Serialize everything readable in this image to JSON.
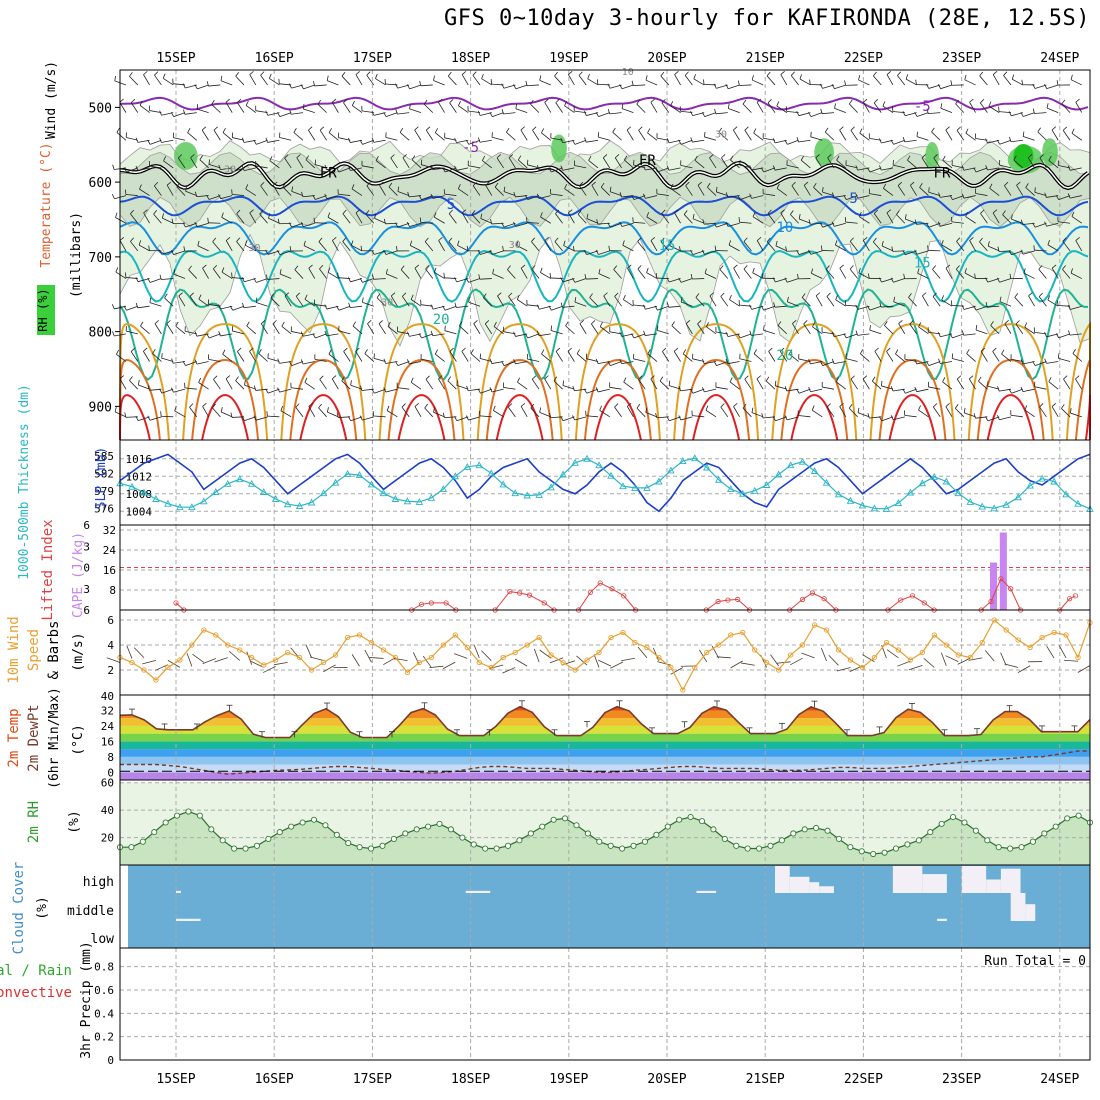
{
  "title": "GFS 0~10day 3-hourly for KAFIRONDA (28E, 12.5S)",
  "colors": {
    "purple": "#8a2ab0",
    "black": "#000000",
    "blue": "#1a4fd6",
    "midblue": "#1a8fe0",
    "cyan": "#17b6c0",
    "teal": "#1fb394",
    "gold": "#e0a020",
    "orange": "#e07020",
    "red": "#e02020",
    "slp": "#1b3fc8",
    "thick": "#2bb6c6",
    "cape": "#c884f0",
    "li": "#e04040",
    "wind10": "#e8a030",
    "rh2m": "#2e9e2e",
    "cloud": "#6aaed6",
    "panel_bg_green": "#e6f3e0"
  },
  "chart_data": [
    {
      "id": "upper-air",
      "type": "line",
      "ylabel_parts": [
        "Wind (m/s)",
        "Temperature (°C)",
        "RH (%)",
        "(millibars)"
      ],
      "y_ticks": [
        500,
        600,
        700,
        800,
        900
      ],
      "ylim": [
        450,
        945
      ],
      "x_ticks_top": [
        "15SEP",
        "16SEP",
        "17SEP",
        "18SEP",
        "19SEP",
        "20SEP",
        "21SEP",
        "22SEP",
        "23SEP",
        "24SEP"
      ],
      "contour_labels": [
        {
          "text": "-5",
          "day": 3.0,
          "p": 560,
          "color": "purple"
        },
        {
          "text": "-5",
          "day": 7.6,
          "p": 505,
          "color": "purple"
        },
        {
          "text": "10",
          "day": 4.6,
          "p": 457,
          "color": "gray"
        },
        {
          "text": "30",
          "day": 0.55,
          "p": 587,
          "color": "gray"
        },
        {
          "text": "30",
          "day": 5.55,
          "p": 540,
          "color": "gray"
        },
        {
          "text": "30",
          "day": 0.8,
          "p": 692,
          "color": "gray"
        },
        {
          "text": "30",
          "day": 2.15,
          "p": 765,
          "color": "gray"
        },
        {
          "text": "30",
          "day": 3.45,
          "p": 688,
          "color": "gray"
        },
        {
          "text": "FR",
          "day": 1.55,
          "p": 594,
          "color": "black"
        },
        {
          "text": "FR",
          "day": 4.8,
          "p": 577,
          "color": "black"
        },
        {
          "text": "FR",
          "day": 7.8,
          "p": 594,
          "color": "black"
        },
        {
          "text": "5",
          "day": 2.8,
          "p": 636,
          "color": "blue"
        },
        {
          "text": "5",
          "day": 6.9,
          "p": 628,
          "color": "blue"
        },
        {
          "text": "10",
          "day": 6.2,
          "p": 667,
          "color": "midblue"
        },
        {
          "text": "15",
          "day": 5.0,
          "p": 691,
          "color": "cyan"
        },
        {
          "text": "15",
          "day": 7.6,
          "p": 714,
          "color": "cyan"
        },
        {
          "text": "20",
          "day": 2.7,
          "p": 790,
          "color": "teal"
        },
        {
          "text": "20",
          "day": 6.2,
          "p": 838,
          "color": "teal"
        }
      ],
      "contours": [
        {
          "name": "-5C",
          "color": "purple",
          "base": 495,
          "amp": 6
        },
        {
          "name": "0C",
          "color": "black",
          "base": 590,
          "amp": 10
        },
        {
          "name": "5C",
          "color": "blue",
          "base": 630,
          "amp": 10
        },
        {
          "name": "10C",
          "color": "midblue",
          "base": 670,
          "amp": 18
        },
        {
          "name": "15C",
          "color": "cyan",
          "base": 715,
          "amp": 30
        },
        {
          "name": "20C",
          "color": "teal",
          "base": 790,
          "amp": 50
        }
      ]
    },
    {
      "id": "slp-thickness",
      "type": "line",
      "left_label": "1000-500mb Thickness (dm)",
      "right_label": "SLP (mb)",
      "left_ticks": [
        576,
        579,
        582,
        585
      ],
      "right_ticks": [
        1004,
        1008,
        1012,
        1016
      ],
      "slp": [
        1011,
        1013,
        1015,
        1016,
        1017,
        1015,
        1013,
        1009,
        1011,
        1013,
        1015,
        1016,
        1014,
        1011,
        1008,
        1010,
        1012,
        1014,
        1016,
        1017,
        1015,
        1012,
        1009,
        1011,
        1013,
        1015,
        1016,
        1014,
        1011,
        1007,
        1009,
        1012,
        1014,
        1015,
        1016,
        1013,
        1011,
        1009,
        1008,
        1010,
        1013,
        1015,
        1013,
        1010,
        1006,
        1004,
        1007,
        1011,
        1013,
        1015,
        1014,
        1011,
        1008,
        1006,
        1005,
        1009,
        1011,
        1013,
        1015,
        1016,
        1014,
        1011,
        1008,
        1010,
        1012,
        1014,
        1016,
        1014,
        1011,
        1008,
        1009,
        1011,
        1013,
        1015,
        1016,
        1013,
        1011,
        1010,
        1012,
        1014,
        1016,
        1017
      ],
      "thickness": [
        580.3,
        579.7,
        578.7,
        577.6,
        576.8,
        576.2,
        576.2,
        577.2,
        578.8,
        580.2,
        581.0,
        580.2,
        578.8,
        577.6,
        576.7,
        576.4,
        577.0,
        578.6,
        580.4,
        581.9,
        581.7,
        580.1,
        578.6,
        577.6,
        577.2,
        577.1,
        577.8,
        579.3,
        581.5,
        583.1,
        583.4,
        582.0,
        580.1,
        578.6,
        578.2,
        578.3,
        579.6,
        581.8,
        583.8,
        584.5,
        583.4,
        581.6,
        579.8,
        579.5,
        579.5,
        580.6,
        582.5,
        584.1,
        584.6,
        583.0,
        580.9,
        579.3,
        578.5,
        579.0,
        580.0,
        581.8,
        583.4,
        584.0,
        582.4,
        580.4,
        578.4,
        577.3,
        576.5,
        576.0,
        575.9,
        576.9,
        578.7,
        580.3,
        581.4,
        580.6,
        578.6,
        577.1,
        576.3,
        576.0,
        576.6,
        577.9,
        579.9,
        581.1,
        580.6,
        578.4,
        576.8,
        575.9
      ]
    },
    {
      "id": "li-cape",
      "type": "bar",
      "left_label": "Lifted Index",
      "right_label": "CAPE (J/kg)",
      "li_ticks": [
        -6,
        -3,
        0,
        3,
        6
      ],
      "cape_ticks": [
        8,
        16,
        24,
        32
      ],
      "cape_bars": [
        {
          "day": 8.32,
          "value": 19
        },
        {
          "day": 8.42,
          "value": 31
        }
      ],
      "li_segments": [
        [
          [
            0.0,
            5.0
          ],
          [
            0.08,
            6.0
          ]
        ],
        [
          [
            2.4,
            6.0
          ],
          [
            2.5,
            5.2
          ],
          [
            2.6,
            5.0
          ],
          [
            2.75,
            5.0
          ],
          [
            2.85,
            6.0
          ]
        ],
        [
          [
            3.25,
            6.0
          ],
          [
            3.4,
            3.4
          ],
          [
            3.5,
            3.6
          ],
          [
            3.6,
            3.9
          ],
          [
            3.75,
            5.0
          ],
          [
            3.85,
            6.0
          ]
        ],
        [
          [
            4.1,
            6.0
          ],
          [
            4.22,
            3.5
          ],
          [
            4.32,
            2.2
          ],
          [
            4.44,
            3.0
          ],
          [
            4.56,
            4.0
          ],
          [
            4.68,
            6.0
          ]
        ],
        [
          [
            5.4,
            6.0
          ],
          [
            5.52,
            4.8
          ],
          [
            5.62,
            4.6
          ],
          [
            5.72,
            4.5
          ],
          [
            5.84,
            6.0
          ]
        ],
        [
          [
            6.25,
            6.0
          ],
          [
            6.38,
            4.5
          ],
          [
            6.48,
            3.6
          ],
          [
            6.6,
            4.4
          ],
          [
            6.72,
            6.0
          ]
        ],
        [
          [
            7.25,
            6.0
          ],
          [
            7.38,
            4.6
          ],
          [
            7.5,
            4.0
          ],
          [
            7.62,
            5.0
          ],
          [
            7.72,
            6.0
          ]
        ],
        [
          [
            8.2,
            6.0
          ],
          [
            8.3,
            4.8
          ],
          [
            8.4,
            1.6
          ],
          [
            8.5,
            3.0
          ],
          [
            8.6,
            6.0
          ]
        ],
        [
          [
            9.0,
            6.0
          ],
          [
            9.1,
            4.4
          ],
          [
            9.16,
            4.0
          ]
        ]
      ]
    },
    {
      "id": "wind10m",
      "type": "line",
      "label": "10m Wind Speed & Barbs (m/s)",
      "ylim": [
        0,
        6.5
      ],
      "y_ticks": [
        2,
        4,
        6
      ],
      "values": [
        3.0,
        2.6,
        2.0,
        1.2,
        2.2,
        2.8,
        4.0,
        5.2,
        4.8,
        4.0,
        3.6,
        3.0,
        2.4,
        2.8,
        3.4,
        3.0,
        2.0,
        2.6,
        3.2,
        4.6,
        4.8,
        4.2,
        3.6,
        3.0,
        1.8,
        2.6,
        3.0,
        4.0,
        4.8,
        3.8,
        2.6,
        2.2,
        3.0,
        3.4,
        4.0,
        4.6,
        3.2,
        2.6,
        2.0,
        2.8,
        3.4,
        4.6,
        5.0,
        4.2,
        3.8,
        3.0,
        2.2,
        0.4,
        2.2,
        3.4,
        4.0,
        4.8,
        5.0,
        3.6,
        2.6,
        2.0,
        3.2,
        4.0,
        5.6,
        5.2,
        3.6,
        2.8,
        2.2,
        3.0,
        4.2,
        3.6,
        2.8,
        3.4,
        4.8,
        4.0,
        3.2,
        3.0,
        4.2,
        6.0,
        5.2,
        4.4,
        3.8,
        4.6,
        5.0,
        4.8,
        3.0,
        5.8
      ]
    },
    {
      "id": "temp2m",
      "type": "area",
      "label": "2m Temp 2m DewPt (6hr Min/Max) (°C)",
      "ylim": [
        -4,
        40
      ],
      "y_ticks": [
        0,
        8,
        16,
        24,
        32,
        40
      ],
      "day_max": [
        30,
        32,
        33,
        33,
        34,
        34,
        34,
        33,
        32,
        32
      ],
      "night_min": [
        22,
        18,
        18,
        19,
        19,
        20,
        20,
        19,
        19,
        21
      ],
      "dewpoint": [
        4,
        4,
        4,
        4,
        3.5,
        3,
        2,
        1,
        0,
        -1,
        -0.5,
        0,
        0.5,
        1,
        1.2,
        1.5,
        2,
        2.5,
        3,
        3,
        2.5,
        2,
        1.5,
        1,
        0.5,
        0,
        -0.5,
        0,
        0.5,
        1.5,
        2.5,
        3,
        3,
        2.5,
        2,
        2,
        2,
        1.5,
        1,
        0.5,
        0,
        0,
        0.5,
        1,
        1.5,
        2,
        2.5,
        3,
        3,
        2.5,
        2,
        2,
        2,
        2,
        1.5,
        1,
        1,
        1,
        1.5,
        2,
        2.5,
        2.5,
        2,
        2,
        2,
        2.5,
        3,
        3.5,
        4,
        4.5,
        5,
        5.5,
        6,
        6.5,
        7,
        7.5,
        8,
        8,
        9,
        10,
        11,
        11
      ],
      "min_temp": [
        0.5,
        0.5,
        0.5,
        0.5,
        0.5,
        0.5,
        0.5,
        0.5,
        0.5,
        0.5
      ]
    },
    {
      "id": "rh2m",
      "type": "area",
      "label": "2m RH (%)",
      "ylim": [
        0,
        60
      ],
      "y_ticks": [
        20,
        40,
        60
      ],
      "values": [
        13,
        13,
        17,
        24,
        31,
        36,
        39,
        36,
        26,
        18,
        12,
        12,
        14,
        19,
        24,
        28,
        31,
        33,
        29,
        22,
        16,
        13,
        12,
        14,
        19,
        23,
        26,
        28,
        30,
        26,
        20,
        15,
        12,
        12,
        14,
        18,
        23,
        28,
        33,
        34,
        29,
        23,
        17,
        14,
        12,
        14,
        17,
        22,
        28,
        33,
        35,
        32,
        26,
        19,
        14,
        12,
        12,
        14,
        18,
        23,
        26,
        27,
        25,
        19,
        13,
        10,
        8,
        9,
        12,
        15,
        18,
        24,
        30,
        35,
        31,
        25,
        18,
        13,
        12,
        13,
        17,
        23,
        28,
        34,
        36,
        31
      ]
    },
    {
      "id": "cloud",
      "type": "heatmap",
      "label": "Cloud Cover (%)",
      "levels": [
        "high",
        "middle",
        "low"
      ],
      "blocks": [
        {
          "level": "high",
          "day": 0.0,
          "span": 0.05
        },
        {
          "level": "middle",
          "day": 0.0,
          "span": 0.25
        },
        {
          "level": "high",
          "day": 2.95,
          "span": 0.25
        },
        {
          "level": "high",
          "day": 5.3,
          "span": 0.2
        },
        {
          "level": "high",
          "day": 6.1,
          "span": 0.15,
          "depth": 1.0
        },
        {
          "level": "high",
          "day": 6.25,
          "span": 0.2,
          "depth": 0.6
        },
        {
          "level": "high",
          "day": 6.45,
          "span": 0.1,
          "depth": 0.4
        },
        {
          "level": "high",
          "day": 6.55,
          "span": 0.15,
          "depth": 0.25
        },
        {
          "level": "high",
          "day": 7.3,
          "span": 0.3,
          "depth": 1.0
        },
        {
          "level": "high",
          "day": 7.6,
          "span": 0.25,
          "depth": 0.7
        },
        {
          "level": "high",
          "day": 8.0,
          "span": 0.25,
          "depth": 1.0
        },
        {
          "level": "high",
          "day": 8.25,
          "span": 0.15,
          "depth": 0.5
        },
        {
          "level": "high",
          "day": 8.4,
          "span": 0.2,
          "depth": 0.9
        },
        {
          "level": "middle",
          "day": 7.75,
          "span": 0.1
        },
        {
          "level": "middle",
          "day": 8.5,
          "span": 0.15,
          "depth": 1.0
        },
        {
          "level": "middle",
          "day": 8.65,
          "span": 0.1,
          "depth": 0.6
        }
      ]
    },
    {
      "id": "precip",
      "type": "bar",
      "label": "3hr Precip (mm)",
      "legend_lines": [
        "Total / Rain",
        "Convective"
      ],
      "ylim": [
        0,
        1.0
      ],
      "y_ticks": [
        0,
        0.2,
        0.4,
        0.6,
        0.8
      ],
      "run_total": "Run Total = 0",
      "values": []
    }
  ],
  "x_ticks_bottom": [
    "15SEP",
    "16SEP",
    "17SEP",
    "18SEP",
    "19SEP",
    "20SEP",
    "21SEP",
    "22SEP",
    "23SEP",
    "24SEP"
  ]
}
